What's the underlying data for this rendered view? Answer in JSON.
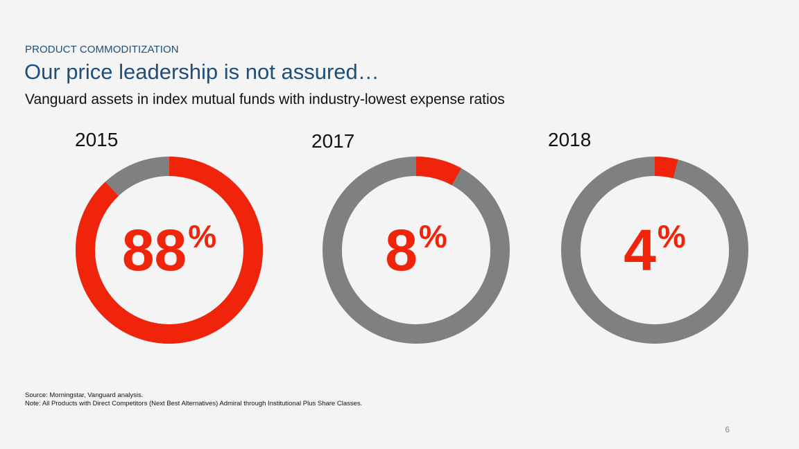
{
  "header": {
    "kicker": "PRODUCT COMMODITIZATION",
    "title": "Our price leadership is not assured…",
    "subtitle": "Vanguard assets in index mutual funds with industry-lowest expense ratios"
  },
  "chart_data": [
    {
      "type": "pie",
      "title": "2015",
      "value": 88,
      "display": "88",
      "unit": "%",
      "colors": {
        "share": "#f0230b",
        "rest": "#7f8180"
      }
    },
    {
      "type": "pie",
      "title": "2017",
      "value": 8,
      "display": "8",
      "unit": "%",
      "colors": {
        "share": "#f0230b",
        "rest": "#7f8180"
      }
    },
    {
      "type": "pie",
      "title": "2018",
      "value": 4,
      "display": "4",
      "unit": "%",
      "colors": {
        "share": "#f0230b",
        "rest": "#7f8180"
      }
    }
  ],
  "footer": {
    "source": "Source: Morningstar, Vanguard analysis.",
    "note": "Note: All Products with Direct Competitors (Next Best Alternatives) Admiral through Institutional Plus Share Classes.",
    "page_number": "6"
  }
}
